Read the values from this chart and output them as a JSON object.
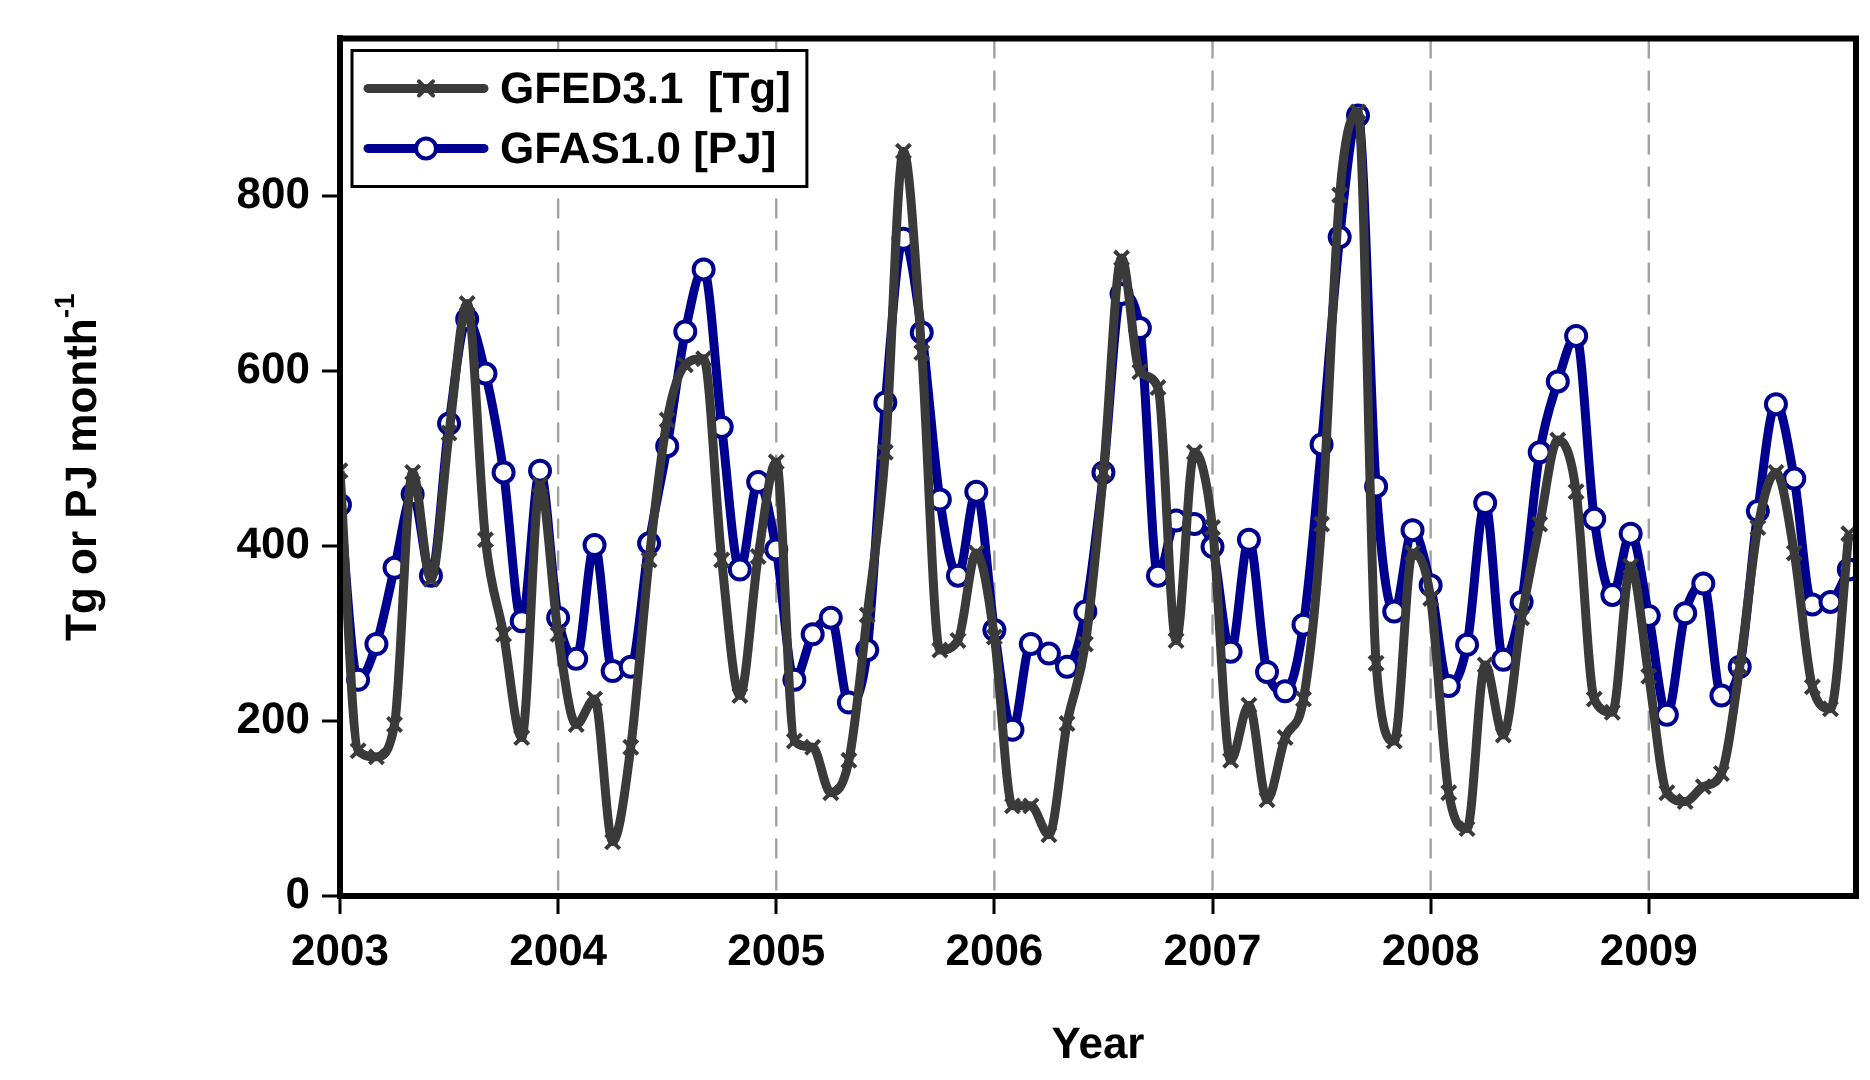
{
  "chart_data": {
    "type": "line",
    "xlabel": "Year",
    "ylabel": "Tg or PJ month$^{-1}$",
    "x": [
      2003.0,
      2003.083,
      2003.167,
      2003.25,
      2003.333,
      2003.417,
      2003.5,
      2003.583,
      2003.667,
      2003.75,
      2003.833,
      2003.917,
      2004.0,
      2004.083,
      2004.167,
      2004.25,
      2004.333,
      2004.417,
      2004.5,
      2004.583,
      2004.667,
      2004.75,
      2004.833,
      2004.917,
      2005.0,
      2005.083,
      2005.167,
      2005.25,
      2005.333,
      2005.417,
      2005.5,
      2005.583,
      2005.667,
      2005.75,
      2005.833,
      2005.917,
      2006.0,
      2006.083,
      2006.167,
      2006.25,
      2006.333,
      2006.417,
      2006.5,
      2006.583,
      2006.667,
      2006.75,
      2006.833,
      2006.917,
      2007.0,
      2007.083,
      2007.167,
      2007.25,
      2007.333,
      2007.417,
      2007.5,
      2007.583,
      2007.667,
      2007.75,
      2007.833,
      2007.917,
      2008.0,
      2008.083,
      2008.167,
      2008.25,
      2008.333,
      2008.417,
      2008.5,
      2008.583,
      2008.667,
      2008.75,
      2008.833,
      2008.917,
      2009.0,
      2009.083,
      2009.167,
      2009.25,
      2009.333,
      2009.417,
      2009.5,
      2009.583,
      2009.667,
      2009.75,
      2009.833,
      2009.917
    ],
    "series": [
      {
        "name": "GFED3.1  [Tg]",
        "color": "#3a3a3a",
        "marker": "cross",
        "values": [
          486,
          166,
          159,
          196,
          484,
          362,
          529,
          677,
          407,
          299,
          181,
          470,
          299,
          196,
          225,
          62,
          170,
          384,
          544,
          607,
          614,
          384,
          229,
          388,
          496,
          177,
          170,
          118,
          155,
          321,
          507,
          851,
          621,
          281,
          292,
          392,
          296,
          103,
          103,
          70,
          197,
          288,
          484,
          729,
          599,
          581,
          292,
          507,
          421,
          155,
          218,
          110,
          181,
          225,
          425,
          801,
          896,
          266,
          177,
          392,
          340,
          118,
          77,
          264,
          184,
          318,
          425,
          521,
          462,
          225,
          210,
          377,
          251,
          118,
          108,
          125,
          140,
          262,
          421,
          484,
          392,
          239,
          214,
          414
        ]
      },
      {
        "name": "GFAS1.0 [PJ]",
        "color": "#000090",
        "marker": "circle",
        "values": [
          447,
          247,
          288,
          375,
          459,
          366,
          540,
          659,
          597,
          484,
          314,
          486,
          318,
          271,
          401,
          257,
          262,
          403,
          514,
          645,
          716,
          536,
          373,
          473,
          396,
          247,
          299,
          318,
          221,
          281,
          564,
          751,
          644,
          453,
          366,
          462,
          304,
          190,
          288,
          277,
          262,
          325,
          484,
          688,
          649,
          366,
          429,
          425,
          399,
          279,
          407,
          256,
          234,
          310,
          516,
          753,
          892,
          468,
          325,
          418,
          355,
          240,
          287,
          449,
          270,
          336,
          507,
          588,
          640,
          431,
          344,
          414,
          320,
          207,
          323,
          357,
          229,
          262,
          440,
          562,
          477,
          333,
          336,
          373
        ]
      }
    ],
    "xlim": [
      2003,
      2009.95
    ],
    "xticks": [
      2003,
      2004,
      2005,
      2006,
      2007,
      2008,
      2009
    ],
    "ylim": [
      0,
      980
    ],
    "yticks": [
      0,
      200,
      400,
      600,
      800
    ],
    "grid": "x",
    "legend": "top left",
    "line_style": "solid"
  }
}
